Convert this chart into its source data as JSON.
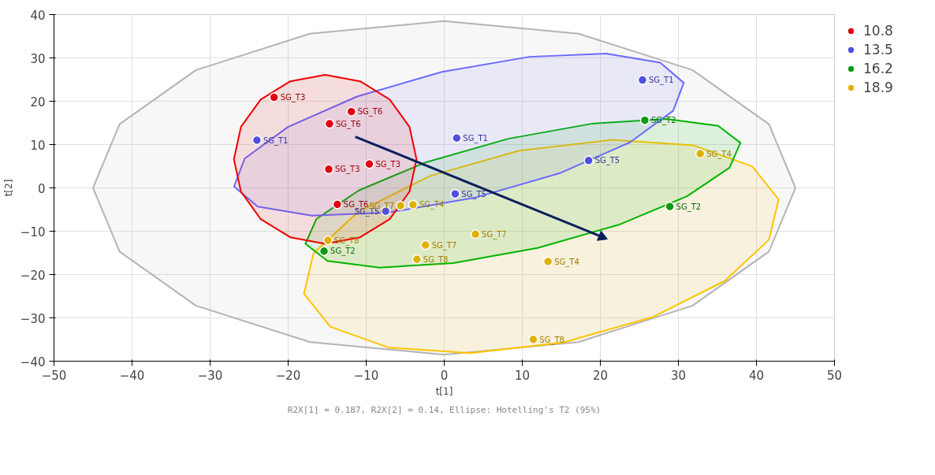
{
  "chart_data": {
    "type": "scatter",
    "xlabel": "t[1]",
    "ylabel": "t[2]",
    "xlim": [
      -50,
      50
    ],
    "ylim": [
      -40,
      40
    ],
    "xticks": [
      -50,
      -40,
      -30,
      -20,
      -10,
      0,
      10,
      20,
      30,
      40,
      50
    ],
    "yticks": [
      -40,
      -30,
      -20,
      -10,
      0,
      10,
      20,
      30,
      40
    ],
    "grid": true,
    "legend": "top right",
    "marker": "circle",
    "series": [
      {
        "type": "area",
        "color": "#b4b4b4",
        "marker": "none",
        "x": [
          45,
          41.6,
          31.8,
          17.2,
          0,
          -17.2,
          -31.8,
          -41.6,
          -45,
          -41.6,
          -31.8,
          -17.2,
          0,
          17.2,
          31.8,
          41.6,
          45
        ],
        "values": [
          0,
          14.7,
          27.2,
          35.6,
          38.5,
          35.6,
          27.2,
          14.7,
          0,
          -14.7,
          -27.2,
          -35.6,
          -38.5,
          -35.6,
          -27.2,
          -14.7,
          0
        ]
      },
      {
        "type": "area",
        "color": "#ffc400",
        "marker": "none",
        "x": [
          42.84,
          41.61,
          35.92,
          26.69,
          15.25,
          3.39,
          -7.08,
          -14.59,
          -17.98,
          -16.75,
          -11.06,
          -1.83,
          9.61,
          21.47,
          31.94,
          39.45,
          42.84
        ],
        "values": [
          -2.67,
          -11.98,
          -21.5,
          -29.83,
          -35.67,
          -38.15,
          -36.88,
          -32.06,
          -24.41,
          -15.1,
          -5.58,
          2.75,
          8.59,
          11.07,
          9.8,
          4.98,
          -2.67
        ]
      },
      {
        "type": "area",
        "color": "#00b400",
        "marker": "none",
        "x": [
          37.95,
          36.55,
          31.11,
          22.49,
          11.96,
          1.15,
          -8.29,
          -14.95,
          -17.79,
          -16.39,
          -10.95,
          -2.33,
          8.2,
          19.01,
          28.45,
          35.11,
          37.95
        ],
        "values": [
          10.39,
          4.67,
          -1.93,
          -8.44,
          -13.86,
          -17.36,
          -18.41,
          -16.85,
          -12.91,
          -7.19,
          -0.59,
          5.92,
          11.34,
          14.84,
          15.89,
          14.33,
          10.39
        ]
      },
      {
        "type": "area",
        "color": "#6a6aff",
        "marker": "none",
        "x": [
          30.69,
          29.33,
          23.78,
          14.92,
          4.05,
          -7.14,
          -16.96,
          -23.91,
          -26.93,
          -25.57,
          -20.02,
          -11.16,
          -0.29,
          10.9,
          20.72,
          27.67,
          30.69
        ],
        "values": [
          24.25,
          17.79,
          10.5,
          3.47,
          -2.21,
          -5.69,
          -6.42,
          -4.33,
          0.31,
          6.77,
          14.06,
          21.09,
          26.77,
          30.25,
          30.98,
          28.89,
          24.25
        ]
      },
      {
        "type": "area",
        "color": "#f00000",
        "marker": "none",
        "x": [
          -3.55,
          -4.45,
          -6.98,
          -10.77,
          -15.25,
          -19.73,
          -23.52,
          -26.05,
          -26.95,
          -26.05,
          -23.52,
          -19.73,
          -15.25,
          -10.77,
          -6.98,
          -4.45,
          -3.55
        ],
        "values": [
          6.6,
          14.06,
          20.4,
          24.6,
          26.1,
          24.6,
          20.4,
          14.06,
          6.6,
          -0.86,
          -7.2,
          -11.4,
          -12.9,
          -11.4,
          -7.2,
          -0.86,
          6.6
        ]
      },
      {
        "type": "line",
        "color": "#0a1f5c",
        "marker": "triangle",
        "x": [
          -11.4,
          20.2
        ],
        "values": [
          11.8,
          -11.3
        ]
      },
      {
        "name": "10.8",
        "color": "#e00010",
        "x": [
          -21.8,
          -11.9,
          -14.7,
          -14.8,
          -9.6,
          -13.7
        ],
        "values": [
          20.9,
          17.6,
          14.8,
          4.3,
          5.5,
          -3.8
        ]
      },
      {
        "name": "13.5",
        "color": "#4f4fe0",
        "x": [
          -24.0,
          1.6,
          25.4,
          18.5,
          1.4,
          -7.5
        ],
        "values": [
          11.0,
          11.5,
          24.9,
          6.3,
          -1.4,
          -5.4
        ]
      },
      {
        "name": "16.2",
        "color": "#109a10",
        "x": [
          25.7,
          28.9,
          -15.4
        ],
        "values": [
          15.6,
          -4.3,
          -14.6
        ]
      },
      {
        "name": "18.9",
        "color": "#e0b000",
        "x": [
          -5.6,
          -4.0,
          -14.9,
          -2.4,
          -3.5,
          4.0,
          13.3,
          11.4,
          32.8
        ],
        "values": [
          -4.1,
          -3.9,
          -12.1,
          -13.2,
          -16.5,
          -10.7,
          -17.0,
          -35.0,
          7.9
        ]
      }
    ],
    "annotations": [
      {
        "text": "SG_T3",
        "x": -21.8,
        "y": 20.9
      },
      {
        "text": "SG_T6",
        "x": -11.9,
        "y": 17.6
      },
      {
        "text": "SG_T6",
        "x": -14.7,
        "y": 14.8
      },
      {
        "text": "SG_T3",
        "x": -14.8,
        "y": 4.3
      },
      {
        "text": "SG_T3",
        "x": -9.6,
        "y": 5.5
      },
      {
        "text": "SG_T6",
        "x": -13.7,
        "y": -3.8
      },
      {
        "text": "SG_T1",
        "x": -24.0,
        "y": 11.0
      },
      {
        "text": "SG_T1",
        "x": 1.6,
        "y": 11.5
      },
      {
        "text": "SG_T1",
        "x": 25.4,
        "y": 24.9
      },
      {
        "text": "SG_T5",
        "x": 18.5,
        "y": 6.3
      },
      {
        "text": "SG_T5",
        "x": 1.4,
        "y": -1.4
      },
      {
        "text": "SG_T5",
        "x": -7.5,
        "y": -5.4
      },
      {
        "text": "SG_T2",
        "x": 25.7,
        "y": 15.6
      },
      {
        "text": "SG_T2",
        "x": 28.9,
        "y": -4.3
      },
      {
        "text": "SG_T2",
        "x": -15.4,
        "y": -14.6
      },
      {
        "text": "SG_T7",
        "x": -5.6,
        "y": -4.1
      },
      {
        "text": "SG_T4",
        "x": -4.0,
        "y": -3.9
      },
      {
        "text": "SG_T8",
        "x": -14.9,
        "y": -12.1
      },
      {
        "text": "SG_T7",
        "x": -2.4,
        "y": -13.2
      },
      {
        "text": "SG_T8",
        "x": -3.5,
        "y": -16.5
      },
      {
        "text": "SG_T7",
        "x": 4.0,
        "y": -10.7
      },
      {
        "text": "SG_T4",
        "x": 13.3,
        "y": -17.0
      },
      {
        "text": "SG_T8",
        "x": 11.4,
        "y": -35.0
      },
      {
        "text": "SG_T4",
        "x": 32.8,
        "y": 7.9
      },
      "R2X[1] = 0.187, R2X[2] = 0.14, Ellipse: Hotelling's T2 (95%)"
    ]
  }
}
